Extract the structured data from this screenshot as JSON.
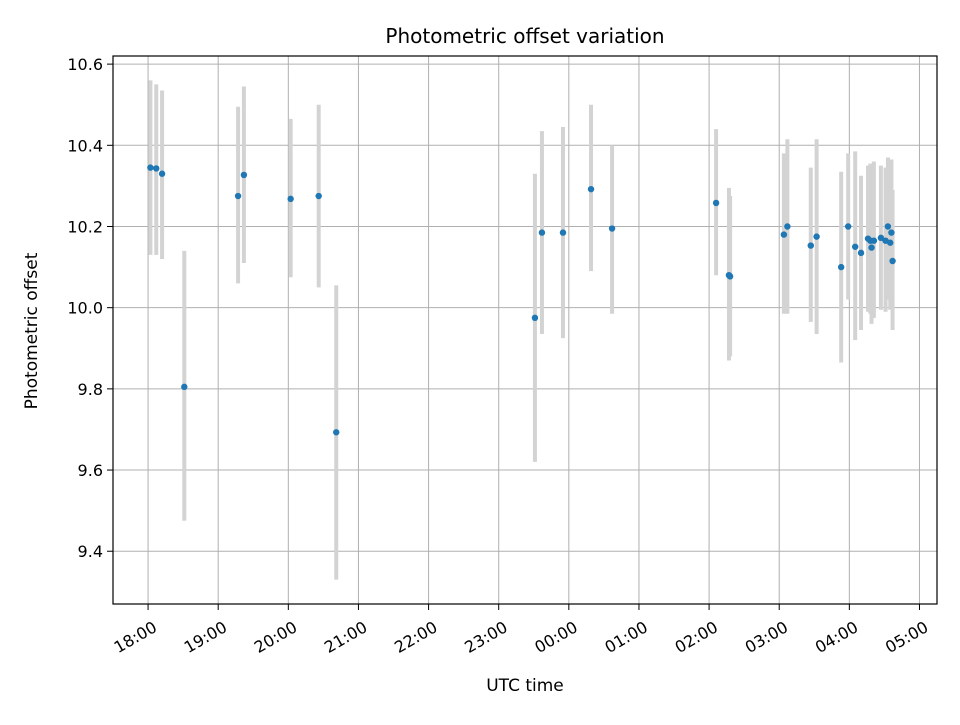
{
  "chart_data": {
    "type": "scatter",
    "title": "Photometric offset variation",
    "xlabel": "UTC time",
    "ylabel": "Photometric offset",
    "x_axis": {
      "kind": "time",
      "range": [
        "17:30",
        "05:15"
      ],
      "ticks": [
        "18:00",
        "19:00",
        "20:00",
        "21:00",
        "22:00",
        "23:00",
        "00:00",
        "01:00",
        "02:00",
        "03:00",
        "04:00",
        "05:00"
      ]
    },
    "y_axis": {
      "range": [
        9.27,
        10.62
      ],
      "ticks": [
        "9.4",
        "9.6",
        "9.8",
        "10.0",
        "10.2",
        "10.4",
        "10.6"
      ]
    },
    "grid": true,
    "colors": {
      "point": "#1f77b4",
      "error_bar": "#d3d3d3",
      "grid": "#b0b0b0"
    },
    "points": [
      {
        "t": "18:02",
        "y": 10.345,
        "lo": 10.13,
        "hi": 10.56
      },
      {
        "t": "18:07",
        "y": 10.343,
        "lo": 10.13,
        "hi": 10.55
      },
      {
        "t": "18:12",
        "y": 10.33,
        "lo": 10.12,
        "hi": 10.535
      },
      {
        "t": "18:31",
        "y": 9.805,
        "lo": 9.475,
        "hi": 10.14
      },
      {
        "t": "19:17",
        "y": 10.275,
        "lo": 10.06,
        "hi": 10.495
      },
      {
        "t": "19:22",
        "y": 10.327,
        "lo": 10.11,
        "hi": 10.545
      },
      {
        "t": "20:02",
        "y": 10.268,
        "lo": 10.075,
        "hi": 10.465
      },
      {
        "t": "20:26",
        "y": 10.275,
        "lo": 10.05,
        "hi": 10.5
      },
      {
        "t": "20:41",
        "y": 9.693,
        "lo": 9.33,
        "hi": 10.055
      },
      {
        "t": "23:31",
        "y": 9.975,
        "lo": 9.62,
        "hi": 10.33
      },
      {
        "t": "23:37",
        "y": 10.185,
        "lo": 9.935,
        "hi": 10.435
      },
      {
        "t": "23:55",
        "y": 10.185,
        "lo": 9.925,
        "hi": 10.445
      },
      {
        "t": "00:19",
        "y": 10.292,
        "lo": 10.09,
        "hi": 10.5
      },
      {
        "t": "00:37",
        "y": 10.195,
        "lo": 9.985,
        "hi": 10.4
      },
      {
        "t": "02:06",
        "y": 10.258,
        "lo": 10.08,
        "hi": 10.44
      },
      {
        "t": "02:17",
        "y": 10.08,
        "lo": 9.87,
        "hi": 10.295
      },
      {
        "t": "02:18",
        "y": 10.077,
        "lo": 9.88,
        "hi": 10.275
      },
      {
        "t": "03:04",
        "y": 10.18,
        "lo": 9.985,
        "hi": 10.38
      },
      {
        "t": "03:07",
        "y": 10.2,
        "lo": 9.985,
        "hi": 10.415
      },
      {
        "t": "03:27",
        "y": 10.153,
        "lo": 9.965,
        "hi": 10.345
      },
      {
        "t": "03:32",
        "y": 10.175,
        "lo": 9.935,
        "hi": 10.415
      },
      {
        "t": "03:53",
        "y": 10.1,
        "lo": 9.865,
        "hi": 10.335
      },
      {
        "t": "03:59",
        "y": 10.2,
        "lo": 10.02,
        "hi": 10.38
      },
      {
        "t": "04:05",
        "y": 10.15,
        "lo": 9.92,
        "hi": 10.385
      },
      {
        "t": "04:10",
        "y": 10.135,
        "lo": 9.945,
        "hi": 10.325
      },
      {
        "t": "04:16",
        "y": 10.17,
        "lo": 9.99,
        "hi": 10.35
      },
      {
        "t": "04:18",
        "y": 10.165,
        "lo": 9.985,
        "hi": 10.355
      },
      {
        "t": "04:19",
        "y": 10.148,
        "lo": 9.96,
        "hi": 10.34
      },
      {
        "t": "04:21",
        "y": 10.165,
        "lo": 9.975,
        "hi": 10.36
      },
      {
        "t": "04:27",
        "y": 10.172,
        "lo": 9.995,
        "hi": 10.35
      },
      {
        "t": "04:31",
        "y": 10.165,
        "lo": 9.99,
        "hi": 10.345
      },
      {
        "t": "04:33",
        "y": 10.2,
        "lo": 10.02,
        "hi": 10.37
      },
      {
        "t": "04:35",
        "y": 10.16,
        "lo": 9.995,
        "hi": 10.33
      },
      {
        "t": "04:36",
        "y": 10.185,
        "lo": 10.005,
        "hi": 10.365
      },
      {
        "t": "04:37",
        "y": 10.115,
        "lo": 9.945,
        "hi": 10.29
      }
    ]
  }
}
